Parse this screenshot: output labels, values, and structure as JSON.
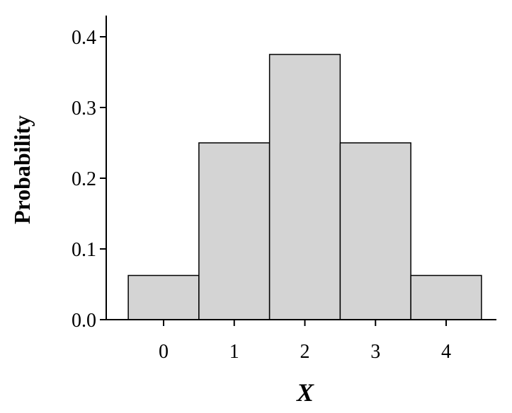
{
  "chart_data": {
    "type": "bar",
    "categories": [
      "0",
      "1",
      "2",
      "3",
      "4"
    ],
    "values": [
      0.0625,
      0.25,
      0.375,
      0.25,
      0.0625
    ],
    "title": "",
    "xlabel": "X",
    "ylabel": "Probability",
    "ylim": [
      0,
      0.42
    ],
    "yticks": [
      "0.0",
      "0.1",
      "0.2",
      "0.3",
      "0.4"
    ],
    "grid": false,
    "legend": "none",
    "colors": {
      "bar_fill": "#d4d4d4",
      "bar_stroke": "#000000",
      "axis": "#000000"
    }
  }
}
